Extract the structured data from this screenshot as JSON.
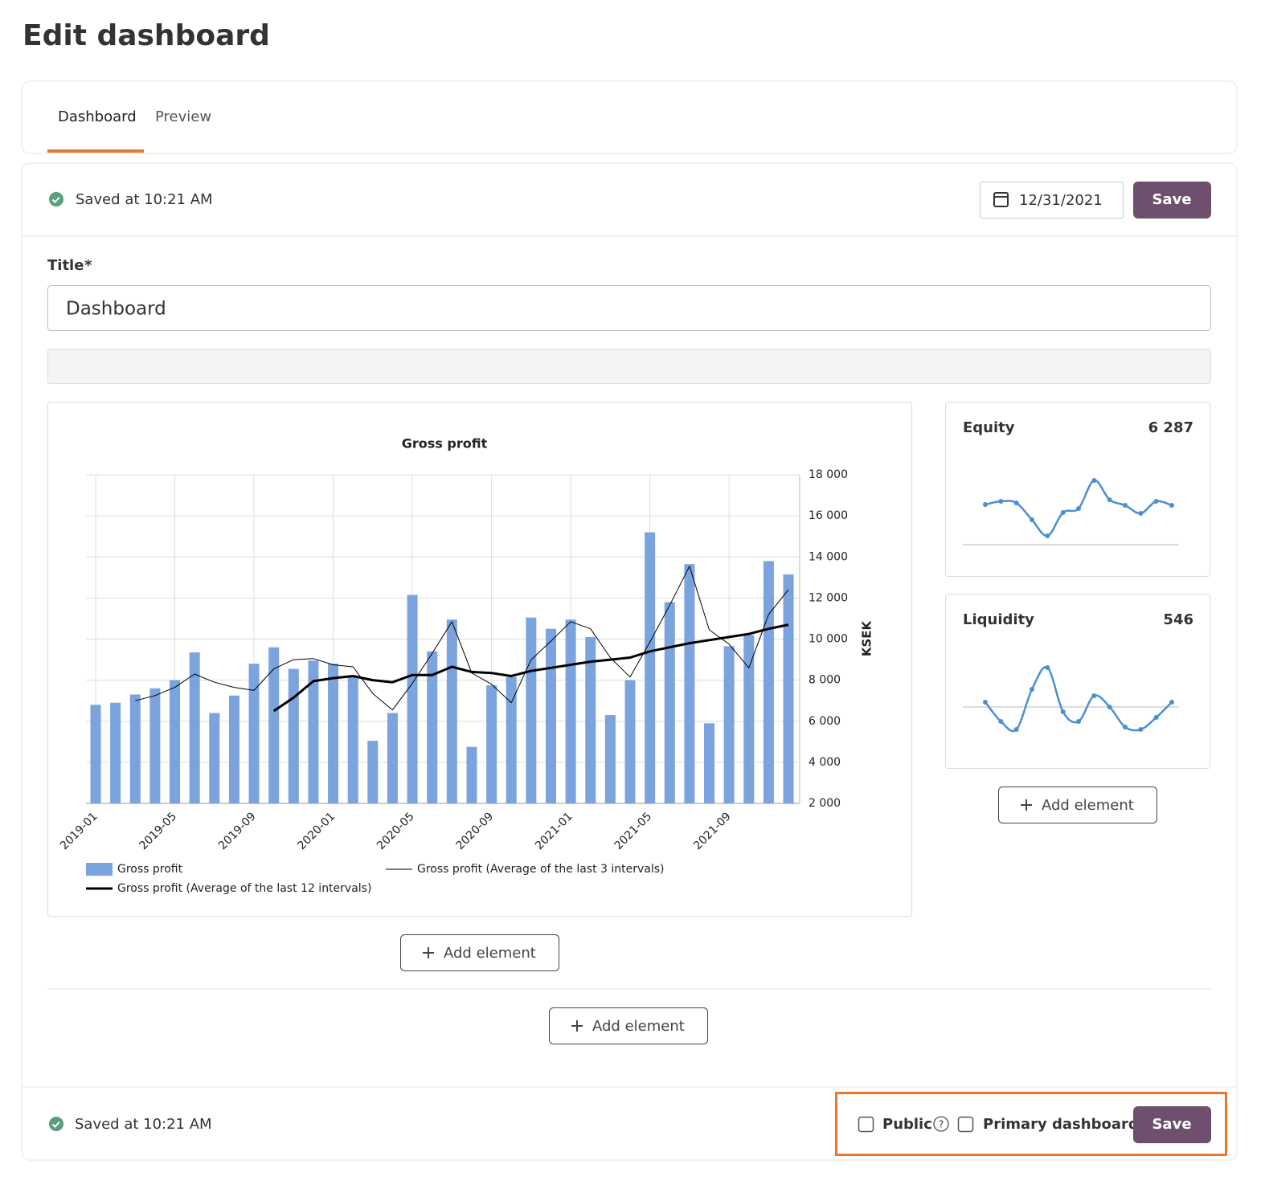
{
  "header": {
    "title": "Edit dashboard"
  },
  "tabs": [
    {
      "label": "Dashboard",
      "active": true
    },
    {
      "label": "Preview",
      "active": false
    }
  ],
  "toolbar": {
    "status": "Saved at 10:21 AM",
    "date": "12/31/2021",
    "save": "Save"
  },
  "form": {
    "title_label": "Title",
    "required_mark": "*",
    "title_value": "Dashboard"
  },
  "chart_data": {
    "type": "bar",
    "title": "Gross profit",
    "y_label": "KSEK",
    "grid": true,
    "categories": [
      "2019-01",
      null,
      null,
      null,
      "2019-05",
      null,
      null,
      null,
      "2019-09",
      null,
      null,
      null,
      "2020-01",
      null,
      null,
      null,
      "2020-05",
      null,
      null,
      null,
      "2020-09",
      null,
      null,
      null,
      "2021-01",
      null,
      null,
      null,
      "2021-05",
      null,
      null,
      null,
      "2021-09",
      null,
      null,
      null
    ],
    "series": [
      {
        "name": "Gross profit",
        "type": "bar",
        "color": "#7ba3dd",
        "values": [
          6800,
          6900,
          7300,
          7600,
          8000,
          9350,
          6400,
          7250,
          8800,
          9600,
          8550,
          8950,
          8800,
          8200,
          5050,
          6400,
          12150,
          9400,
          10950,
          4750,
          7750,
          8150,
          11050,
          10500,
          10950,
          10100,
          6300,
          8000,
          15200,
          11800,
          13650,
          5900,
          9650,
          10200,
          13800,
          13150
        ]
      },
      {
        "name": "Gross profit (Average of the last 3 intervals)",
        "type": "line",
        "line_width": 1,
        "color": "#000000",
        "values": [
          null,
          null,
          7000,
          7250,
          7650,
          8300,
          7900,
          7650,
          7500,
          8550,
          9000,
          9050,
          8750,
          8650,
          7350,
          6550,
          7850,
          9300,
          10850,
          8350,
          7800,
          6900,
          9000,
          9900,
          10850,
          10500,
          9100,
          8150,
          9850,
          11650,
          13550,
          10450,
          9750,
          8600,
          11200,
          12400
        ]
      },
      {
        "name": "Gross profit (Average of the last 12 intervals)",
        "type": "line",
        "line_width": 3,
        "color": "#000000",
        "values": [
          null,
          null,
          null,
          null,
          null,
          null,
          null,
          null,
          null,
          6500,
          7150,
          7950,
          8100,
          8200,
          8000,
          7900,
          8250,
          8250,
          8650,
          8400,
          8350,
          8200,
          8450,
          8600,
          8750,
          8900,
          9000,
          9100,
          9400,
          9600,
          9800,
          9950,
          10100,
          10250,
          10500,
          10700
        ]
      }
    ],
    "ylim": [
      2000,
      18000
    ],
    "yticks": [
      {
        "value": 2000,
        "label": "2 000"
      },
      {
        "value": 4000,
        "label": "4 000"
      },
      {
        "value": 6000,
        "label": "6 000"
      },
      {
        "value": 8000,
        "label": "8 000"
      },
      {
        "value": 10000,
        "label": "10 000"
      },
      {
        "value": 12000,
        "label": "12 000"
      },
      {
        "value": 14000,
        "label": "14 000"
      },
      {
        "value": 16000,
        "label": "16 000"
      },
      {
        "value": 18000,
        "label": "18 000"
      }
    ]
  },
  "widgets": [
    {
      "title": "Equity",
      "value": "6 287",
      "color": "#4a90d0",
      "points": [
        50,
        54,
        52,
        31,
        11,
        40,
        45,
        80,
        56,
        49,
        39,
        54,
        49
      ]
    },
    {
      "title": "Liquidity",
      "value": "546",
      "color": "#4a90d0",
      "points": [
        6,
        -18,
        -28,
        22,
        49,
        -6,
        -18,
        14,
        0,
        -25,
        -28,
        -13,
        6
      ]
    }
  ],
  "add_element_buttons": [
    "Add element",
    "Add element",
    "Add element"
  ],
  "footer": {
    "status": "Saved at 10:21 AM",
    "public_label": "Public",
    "help_icon": "?",
    "primary_label": "Primary dashboard",
    "save": "Save"
  }
}
